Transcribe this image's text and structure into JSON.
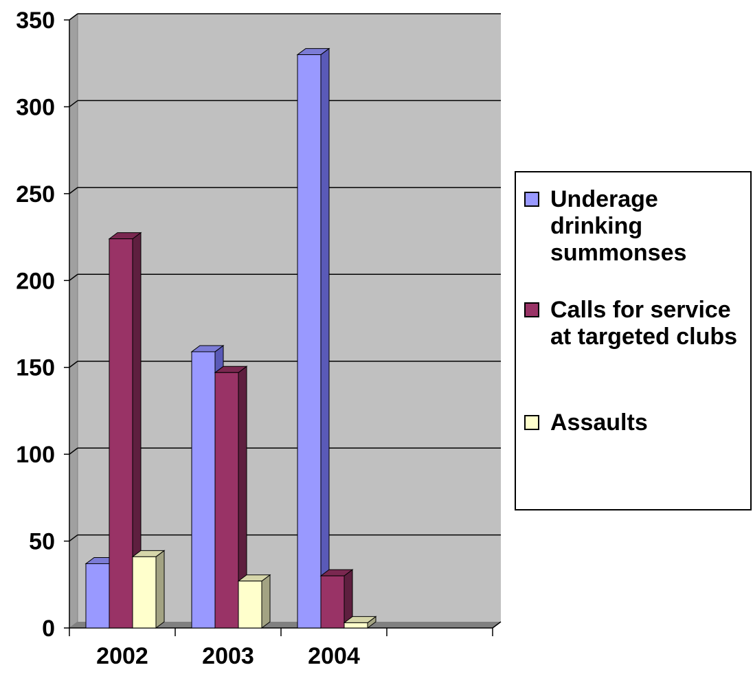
{
  "chart_data": {
    "type": "bar",
    "categories": [
      "2002",
      "2003",
      "2004",
      ""
    ],
    "series": [
      {
        "name": "Underage drinking summonses",
        "values": [
          37,
          159,
          330,
          null
        ]
      },
      {
        "name": "Calls for service at targeted clubs",
        "values": [
          224,
          147,
          30,
          null
        ]
      },
      {
        "name": "Assaults",
        "values": [
          41,
          27,
          3,
          null
        ]
      }
    ],
    "ylim": [
      0,
      350
    ],
    "yticks": [
      "0",
      "50",
      "100",
      "150",
      "200",
      "250",
      "300",
      "350"
    ],
    "title": "",
    "xlabel": "",
    "ylabel": "",
    "grid": true,
    "legend": "right",
    "style": "3d-clustered-column",
    "colors": {
      "series": [
        "#9999FF",
        "#993366",
        "#FFFFCC"
      ],
      "series_side": [
        "#5A5AB8",
        "#5E1F3F",
        "#A3A383"
      ],
      "series_top": [
        "#7C7CD6",
        "#7A2850",
        "#D6D6AA"
      ],
      "plot_back": "#C0C0C0",
      "plot_wall": "#A0A0A0",
      "plot_floor": "#808080"
    }
  },
  "legend": {
    "items": [
      {
        "label": "Underage drinking summonses"
      },
      {
        "label": "Calls for service at targeted clubs"
      },
      {
        "label": "Assaults"
      }
    ]
  }
}
